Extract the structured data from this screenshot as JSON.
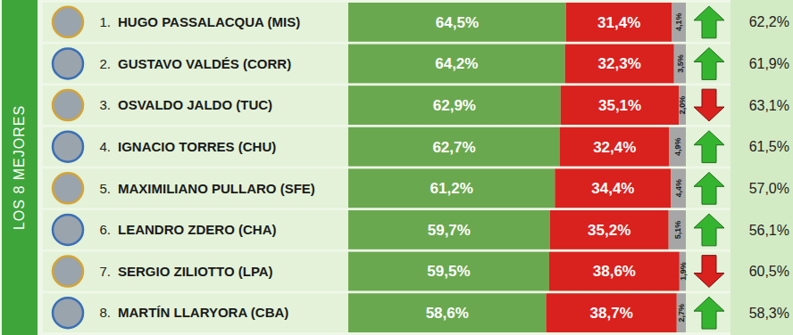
{
  "chart_data": {
    "type": "bar",
    "orientation": "horizontal",
    "stacked": true,
    "data_labels": true,
    "tick_labels": "y",
    "group_label": "LOS 8 MEJORES",
    "ranks": [
      "1.",
      "2.",
      "3.",
      "4.",
      "5.",
      "6.",
      "7.",
      "8."
    ],
    "categories": [
      "HUGO PASSALACQUA (MIS)",
      "GUSTAVO VALDÉS (CORR)",
      "OSVALDO JALDO (TUC)",
      "IGNACIO TORRES (CHU)",
      "MAXIMILIANO PULLARO (SFE)",
      "LEANDRO ZDERO (CHA)",
      "SERGIO ZILIOTTO (LPA)",
      "MARTÍN LLARYORA (CBA)"
    ],
    "xlim": [
      0,
      100
    ],
    "series": [
      {
        "color": "#6aa84f",
        "values": [
          64.5,
          64.2,
          62.9,
          62.7,
          61.2,
          59.7,
          59.5,
          58.6
        ],
        "value_labels": [
          "64,5%",
          "64,2%",
          "62,9%",
          "62,7%",
          "61,2%",
          "59,7%",
          "59,5%",
          "58,6%"
        ]
      },
      {
        "color": "#d9211e",
        "values": [
          31.4,
          32.3,
          35.1,
          32.4,
          34.4,
          35.2,
          38.6,
          38.7
        ],
        "value_labels": [
          "31,4%",
          "32,3%",
          "35,1%",
          "32,4%",
          "34,4%",
          "35,2%",
          "38,6%",
          "38,7%"
        ]
      },
      {
        "color": "#a6a6a6",
        "values": [
          4.1,
          3.5,
          2.0,
          4.9,
          4.4,
          5.1,
          1.9,
          2.7
        ],
        "value_labels": [
          "4,1%",
          "3,5%",
          "2,0%",
          "4,9%",
          "4,4%",
          "5,1%",
          "1,9%",
          "2,7%"
        ]
      }
    ],
    "previous": {
      "values": [
        62.2,
        61.9,
        63.1,
        61.5,
        57.0,
        56.1,
        60.5,
        58.3
      ],
      "value_labels": [
        "62,2%",
        "61,9%",
        "63,1%",
        "61,5%",
        "57,0%",
        "56,1%",
        "60,5%",
        "58,3%"
      ]
    }
  }
}
